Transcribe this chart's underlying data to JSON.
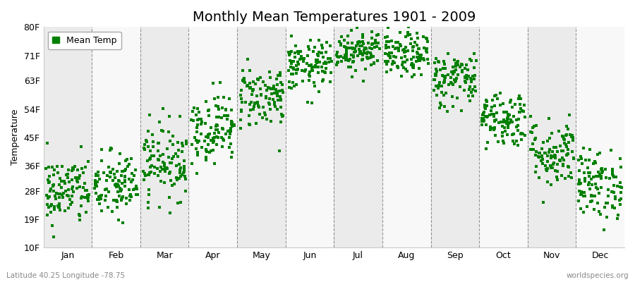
{
  "title": "Monthly Mean Temperatures 1901 - 2009",
  "ylabel": "Temperature",
  "xlabel_months": [
    "Jan",
    "Feb",
    "Mar",
    "Apr",
    "May",
    "Jun",
    "Jul",
    "Aug",
    "Sep",
    "Oct",
    "Nov",
    "Dec"
  ],
  "ytick_labels": [
    "10F",
    "19F",
    "28F",
    "36F",
    "45F",
    "54F",
    "63F",
    "71F",
    "80F"
  ],
  "ytick_values": [
    10,
    19,
    28,
    36,
    45,
    54,
    63,
    71,
    80
  ],
  "ylim": [
    10,
    80
  ],
  "dot_color": "#008000",
  "dot_size": 6,
  "background_color": "#ffffff",
  "plot_bg_color": "#ffffff",
  "legend_label": "Mean Temp",
  "footer_left": "Latitude 40.25 Longitude -78.75",
  "footer_right": "worldspecies.org",
  "title_fontsize": 14,
  "axis_label_fontsize": 9,
  "tick_fontsize": 9,
  "monthly_means": [
    28.0,
    29.5,
    37.5,
    48.0,
    58.0,
    67.5,
    73.0,
    71.0,
    63.5,
    51.0,
    40.0,
    30.0
  ],
  "monthly_stds": [
    5.5,
    5.5,
    6.0,
    5.5,
    5.0,
    4.0,
    3.5,
    3.5,
    4.5,
    4.5,
    5.5,
    5.5
  ],
  "n_years": 109,
  "seed": 42,
  "alternating_bg": [
    "#ebebeb",
    "#f8f8f8"
  ],
  "grid_color": "#555555",
  "vline_positions": [
    1,
    2,
    3,
    4,
    5,
    6,
    7,
    8,
    9,
    10,
    11
  ]
}
